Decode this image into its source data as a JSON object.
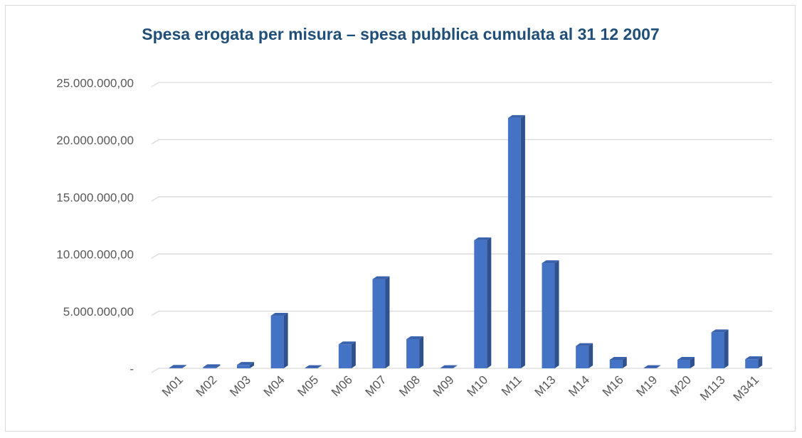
{
  "chart_data": {
    "type": "bar3d",
    "title": "Spesa erogata per misura – spesa pubblica cumulata al 31 12 2007",
    "categories": [
      "M01",
      "M02",
      "M03",
      "M04",
      "M05",
      "M06",
      "M07",
      "M08",
      "M09",
      "M10",
      "M11",
      "M13",
      "M14",
      "M16",
      "M19",
      "M20",
      "M113",
      "M341"
    ],
    "values": [
      50000,
      100000,
      300000,
      4600000,
      20000,
      2100000,
      7800000,
      2550000,
      20000,
      11200000,
      21900000,
      9200000,
      1950000,
      750000,
      20000,
      750000,
      3150000,
      800000
    ],
    "color": "#4472c4",
    "ylim": [
      0,
      25000000
    ],
    "yticks": [
      {
        "value": 0,
        "label": "-"
      },
      {
        "value": 5000000,
        "label": "5.000.000,00"
      },
      {
        "value": 10000000,
        "label": "10.000.000,00"
      },
      {
        "value": 15000000,
        "label": "15.000.000,00"
      },
      {
        "value": 20000000,
        "label": "20.000.000,00"
      },
      {
        "value": 25000000,
        "label": "25.000.000,00"
      }
    ],
    "grid": true
  }
}
